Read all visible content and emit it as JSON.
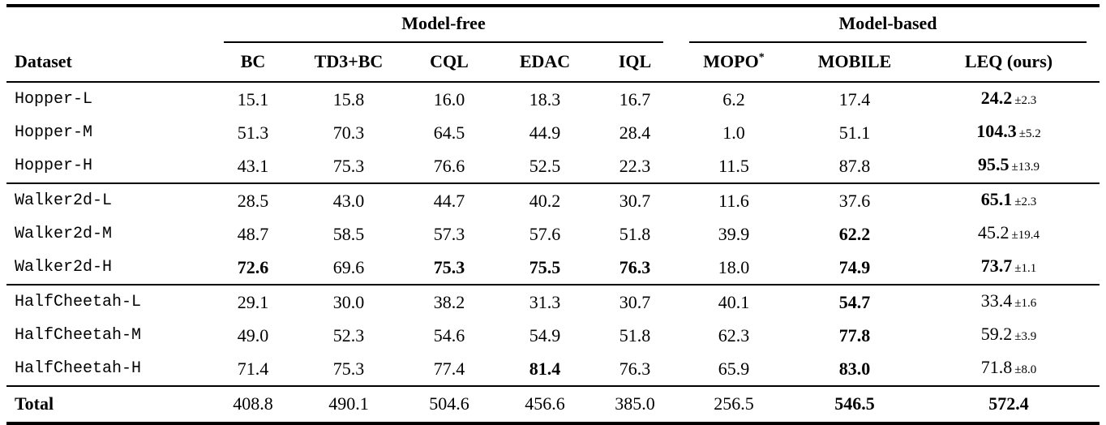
{
  "table": {
    "groups": [
      {
        "label": "Model-free"
      },
      {
        "label": "Model-based"
      }
    ],
    "columns": [
      {
        "label": "Dataset"
      },
      {
        "label": "BC"
      },
      {
        "label": "TD3+BC"
      },
      {
        "label": "CQL"
      },
      {
        "label": "EDAC"
      },
      {
        "label": "IQL"
      },
      {
        "label": "MOPO",
        "sup": "*"
      },
      {
        "label": "MOBILE"
      },
      {
        "label": "LEQ (ours)"
      }
    ],
    "rows": [
      {
        "dataset": "Hopper-L",
        "group_start": false,
        "cells": [
          {
            "v": "15.1"
          },
          {
            "v": "15.8"
          },
          {
            "v": "16.0"
          },
          {
            "v": "18.3"
          },
          {
            "v": "16.7"
          },
          {
            "v": "6.2"
          },
          {
            "v": "17.4"
          },
          {
            "v": "24.2",
            "bold": true,
            "pm": "±2.3"
          }
        ]
      },
      {
        "dataset": "Hopper-M",
        "group_start": false,
        "cells": [
          {
            "v": "51.3"
          },
          {
            "v": "70.3"
          },
          {
            "v": "64.5"
          },
          {
            "v": "44.9"
          },
          {
            "v": "28.4"
          },
          {
            "v": "1.0"
          },
          {
            "v": "51.1"
          },
          {
            "v": "104.3",
            "bold": true,
            "pm": "±5.2"
          }
        ]
      },
      {
        "dataset": "Hopper-H",
        "group_start": false,
        "cells": [
          {
            "v": "43.1"
          },
          {
            "v": "75.3"
          },
          {
            "v": "76.6"
          },
          {
            "v": "52.5"
          },
          {
            "v": "22.3"
          },
          {
            "v": "11.5"
          },
          {
            "v": "87.8"
          },
          {
            "v": "95.5",
            "bold": true,
            "pm": "±13.9"
          }
        ]
      },
      {
        "dataset": "Walker2d-L",
        "group_start": true,
        "cells": [
          {
            "v": "28.5"
          },
          {
            "v": "43.0"
          },
          {
            "v": "44.7"
          },
          {
            "v": "40.2"
          },
          {
            "v": "30.7"
          },
          {
            "v": "11.6"
          },
          {
            "v": "37.6"
          },
          {
            "v": "65.1",
            "bold": true,
            "pm": "±2.3"
          }
        ]
      },
      {
        "dataset": "Walker2d-M",
        "group_start": false,
        "cells": [
          {
            "v": "48.7"
          },
          {
            "v": "58.5"
          },
          {
            "v": "57.3"
          },
          {
            "v": "57.6"
          },
          {
            "v": "51.8"
          },
          {
            "v": "39.9"
          },
          {
            "v": "62.2",
            "bold": true
          },
          {
            "v": "45.2",
            "pm": "±19.4"
          }
        ]
      },
      {
        "dataset": "Walker2d-H",
        "group_start": false,
        "cells": [
          {
            "v": "72.6",
            "bold": true
          },
          {
            "v": "69.6"
          },
          {
            "v": "75.3",
            "bold": true
          },
          {
            "v": "75.5",
            "bold": true
          },
          {
            "v": "76.3",
            "bold": true
          },
          {
            "v": "18.0"
          },
          {
            "v": "74.9",
            "bold": true
          },
          {
            "v": "73.7",
            "bold": true,
            "pm": "±1.1"
          }
        ]
      },
      {
        "dataset": "HalfCheetah-L",
        "group_start": true,
        "cells": [
          {
            "v": "29.1"
          },
          {
            "v": "30.0"
          },
          {
            "v": "38.2"
          },
          {
            "v": "31.3"
          },
          {
            "v": "30.7"
          },
          {
            "v": "40.1"
          },
          {
            "v": "54.7",
            "bold": true
          },
          {
            "v": "33.4",
            "pm": "±1.6"
          }
        ]
      },
      {
        "dataset": "HalfCheetah-M",
        "group_start": false,
        "cells": [
          {
            "v": "49.0"
          },
          {
            "v": "52.3"
          },
          {
            "v": "54.6"
          },
          {
            "v": "54.9"
          },
          {
            "v": "51.8"
          },
          {
            "v": "62.3"
          },
          {
            "v": "77.8",
            "bold": true
          },
          {
            "v": "59.2",
            "pm": "±3.9"
          }
        ]
      },
      {
        "dataset": "HalfCheetah-H",
        "group_start": false,
        "cells": [
          {
            "v": "71.4"
          },
          {
            "v": "75.3"
          },
          {
            "v": "77.4"
          },
          {
            "v": "81.4",
            "bold": true
          },
          {
            "v": "76.3"
          },
          {
            "v": "65.9"
          },
          {
            "v": "83.0",
            "bold": true
          },
          {
            "v": "71.8",
            "pm": "±8.0"
          }
        ]
      }
    ],
    "total_row": {
      "label": "Total",
      "cells": [
        {
          "v": "408.8"
        },
        {
          "v": "490.1"
        },
        {
          "v": "504.6"
        },
        {
          "v": "456.6"
        },
        {
          "v": "385.0"
        },
        {
          "v": "256.5"
        },
        {
          "v": "546.5",
          "bold": true
        },
        {
          "v": "572.4",
          "bold": true
        }
      ]
    }
  }
}
